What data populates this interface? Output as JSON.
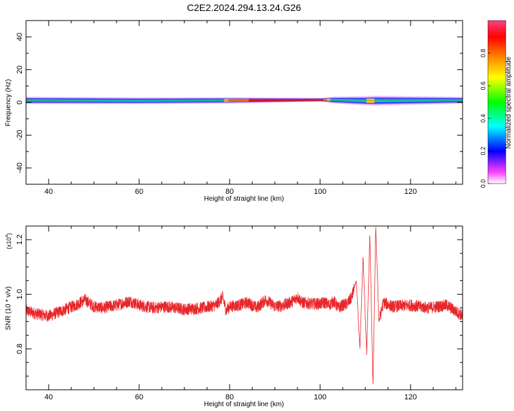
{
  "title": "C2E2.2024.294.13.24.G26",
  "chart_data": [
    {
      "type": "heatmap",
      "title": "C2E2.2024.294.13.24.G26",
      "xlabel": "Height of straight line (km)",
      "ylabel": "Frequency (Hz)",
      "xlim": [
        35,
        131.5
      ],
      "ylim": [
        -50,
        50
      ],
      "xticks": [
        40,
        60,
        80,
        100,
        120
      ],
      "yticks": [
        -40,
        -20,
        0,
        20,
        40
      ],
      "band": {
        "center_hz": [
          [
            35,
            1.2
          ],
          [
            60,
            1.0
          ],
          [
            80,
            1.2
          ],
          [
            100,
            1.6
          ],
          [
            110,
            1.0
          ],
          [
            131.5,
            1.3
          ]
        ],
        "width_hz": [
          [
            35,
            2.8
          ],
          [
            80,
            2.4
          ],
          [
            100,
            1.5
          ],
          [
            103,
            2.6
          ],
          [
            112,
            3.8
          ],
          [
            131.5,
            2.6
          ]
        ],
        "amplitude": [
          [
            35,
            0.45
          ],
          [
            76,
            0.45
          ],
          [
            80,
            0.72
          ],
          [
            88,
            0.88
          ],
          [
            100,
            0.9
          ],
          [
            103,
            0.5
          ],
          [
            108,
            0.45
          ],
          [
            111,
            0.7
          ],
          [
            113,
            0.5
          ],
          [
            131.5,
            0.6
          ]
        ]
      },
      "colorbar": {
        "label": "Normalized spectral amplitude",
        "range": [
          0,
          1
        ],
        "ticks": [
          "0.0",
          "0.2",
          "0.4",
          "0.6",
          "0.8"
        ],
        "tick_values": [
          0.0,
          0.2,
          0.4,
          0.6,
          0.8
        ],
        "colors": [
          "#ffffff",
          "#ff40ff",
          "#0000ff",
          "#00ffff",
          "#00ff00",
          "#ffff00",
          "#ff8000",
          "#ff0000",
          "#ff4080"
        ]
      }
    },
    {
      "type": "line",
      "xlabel": "Height of straight line (km)",
      "ylabel": "SNR (10 * v/v)",
      "yscale_label": "(x10",
      "yscale_exp": "4",
      "xlim": [
        35,
        131.5
      ],
      "ylim": [
        0.65,
        1.25
      ],
      "xticks": [
        40,
        60,
        80,
        100,
        120
      ],
      "yticks": [
        0.8,
        1.0,
        1.2
      ],
      "ytick_labels": [
        "0.8",
        "1.0",
        "1.2"
      ],
      "series": [
        {
          "color": "#e8262a",
          "x": [
            35,
            37,
            40,
            43,
            46,
            48,
            50,
            52,
            55,
            58,
            60,
            63,
            66,
            70,
            74,
            77,
            78.5,
            79.2,
            80,
            82,
            84,
            86,
            88,
            90,
            92,
            94,
            95,
            96,
            98,
            100,
            101,
            102,
            103,
            104,
            105,
            106,
            107,
            108,
            108.8,
            109.5,
            110.3,
            111,
            111.7,
            112.3,
            113,
            114,
            116,
            120,
            124,
            128,
            131.5
          ],
          "y": [
            0.94,
            0.93,
            0.92,
            0.94,
            0.96,
            0.98,
            0.955,
            0.95,
            0.96,
            0.975,
            0.96,
            0.95,
            0.955,
            0.945,
            0.95,
            0.96,
            0.99,
            0.94,
            0.955,
            0.96,
            0.97,
            0.95,
            0.98,
            0.955,
            0.96,
            0.975,
            0.99,
            0.97,
            0.965,
            0.965,
            0.97,
            0.96,
            0.975,
            0.95,
            0.96,
            0.965,
            0.99,
            1.05,
            0.8,
            1.14,
            0.78,
            1.22,
            0.66,
            1.25,
            0.9,
            0.97,
            0.955,
            0.96,
            0.95,
            0.96,
            0.92
          ]
        }
      ]
    }
  ]
}
